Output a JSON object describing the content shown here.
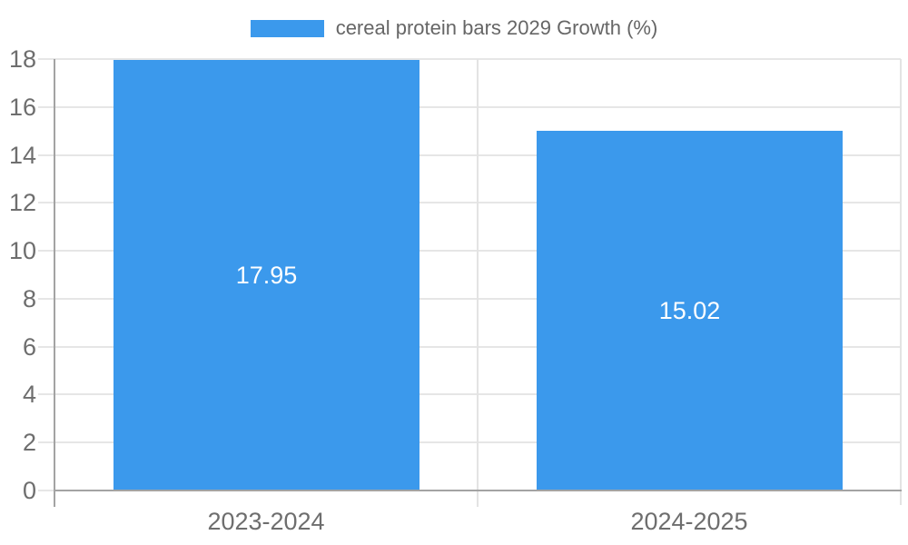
{
  "chart_data": {
    "type": "bar",
    "title": "",
    "legend": {
      "label": "cereal protein bars 2029 Growth (%)",
      "position": "top"
    },
    "categories": [
      "2023-2024",
      "2024-2025"
    ],
    "series": [
      {
        "name": "cereal protein bars 2029 Growth (%)",
        "values": [
          17.95,
          15.02
        ]
      }
    ],
    "value_labels": [
      "17.95",
      "15.02"
    ],
    "ylim": [
      0,
      18
    ],
    "y_tick_step": 2,
    "y_ticks": [
      "0",
      "2",
      "4",
      "6",
      "8",
      "10",
      "12",
      "14",
      "16",
      "18"
    ],
    "grid": true,
    "colors": {
      "bar": "#3b99ec",
      "gridline": "#e6e6e6",
      "separator": "#e3e3e3",
      "axis_border": "#a3a3a3",
      "tick_label": "#6e6e6e",
      "legend_text": "#666666",
      "value_label": "#ffffff",
      "background": "#ffffff"
    }
  }
}
